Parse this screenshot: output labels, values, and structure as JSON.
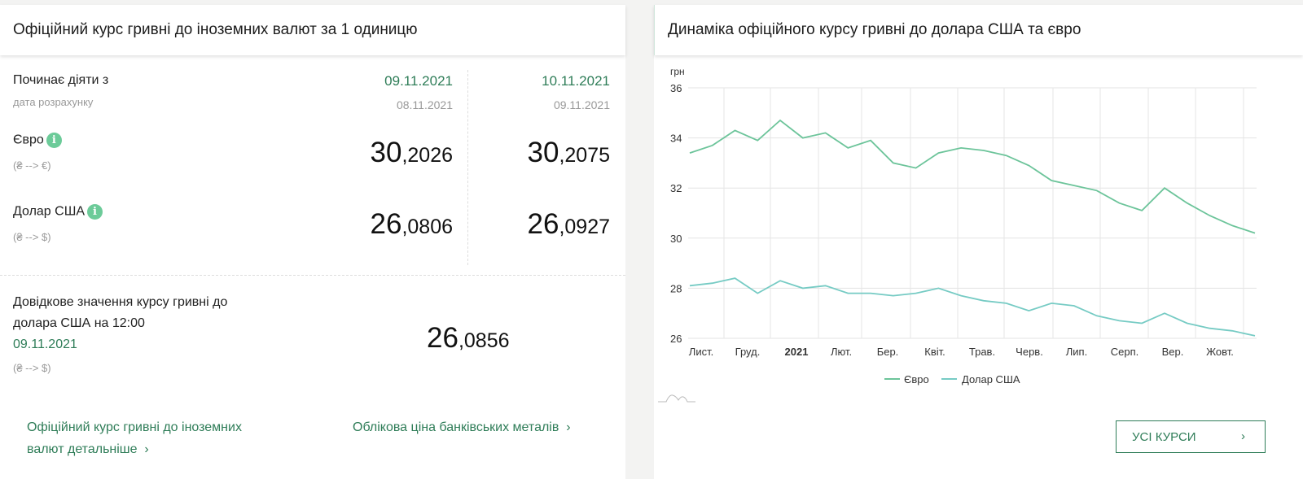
{
  "left": {
    "title": "Офіційний курс гривні до іноземних валют за 1 одиницю",
    "effective_label": "Починає діяти з",
    "calc_date_label": "дата розрахунку",
    "columns": [
      {
        "effective_date": "09.11.2021",
        "calc_date": "08.11.2021"
      },
      {
        "effective_date": "10.11.2021",
        "calc_date": "09.11.2021"
      }
    ],
    "currencies": [
      {
        "name": "Євро",
        "direction": "(₴ --> €)",
        "info_icon": "i",
        "rates": [
          {
            "int": "30",
            "frac": ",2026"
          },
          {
            "int": "30",
            "frac": ",2075"
          }
        ]
      },
      {
        "name": "Долар США",
        "direction": "(₴ --> $)",
        "info_icon": "i",
        "rates": [
          {
            "int": "26",
            "frac": ",0806"
          },
          {
            "int": "26",
            "frac": ",0927"
          }
        ]
      }
    ],
    "reference": {
      "line1": "Довідкове значення курсу гривні до",
      "line2": "долара США на 12:00",
      "date": "09.11.2021",
      "direction": "(₴ --> $)",
      "rate_int": "26",
      "rate_frac": ",0856"
    },
    "links": {
      "details_line1": "Офіційний курс гривні до іноземних",
      "details_line2": "валют детальніше",
      "metals": "Облікова ціна банківських металів",
      "chevron": "›"
    }
  },
  "right": {
    "title": "Динаміка офіційного курсу гривні до долара США та євро",
    "all_rates_button": "УСІ КУРСИ",
    "chevron": "›"
  },
  "colors": {
    "accent": "#2f7d58",
    "euro_line": "#6cc49a",
    "usd_line": "#76cbc4",
    "info_badge": "#6ccb99"
  },
  "chart_data": {
    "type": "line",
    "title": "Динаміка офіційного курсу гривні до долара США та євро",
    "ylabel": "грн",
    "xlabel": "",
    "ylim": [
      26,
      36
    ],
    "yticks": [
      26,
      28,
      30,
      32,
      34,
      36
    ],
    "x_tick_labels": [
      "Лист.",
      "Груд.",
      "2021",
      "Лют.",
      "Бер.",
      "Квіт.",
      "Трав.",
      "Черв.",
      "Лип.",
      "Серп.",
      "Вер.",
      "Жовт."
    ],
    "grid": true,
    "legend": [
      "Євро",
      "Долар США"
    ],
    "legend_position": "bottom",
    "x": [
      "2020-11-01",
      "2020-11-15",
      "2020-12-01",
      "2020-12-15",
      "2021-01-01",
      "2021-01-15",
      "2021-02-01",
      "2021-02-15",
      "2021-03-01",
      "2021-03-15",
      "2021-04-01",
      "2021-04-15",
      "2021-05-01",
      "2021-05-15",
      "2021-06-01",
      "2021-06-15",
      "2021-07-01",
      "2021-07-15",
      "2021-08-01",
      "2021-08-15",
      "2021-09-01",
      "2021-09-15",
      "2021-10-01",
      "2021-10-15",
      "2021-11-01",
      "2021-11-09"
    ],
    "series": [
      {
        "name": "Євро",
        "values": [
          33.4,
          33.7,
          34.3,
          33.9,
          34.7,
          34.0,
          34.2,
          33.6,
          33.9,
          33.0,
          32.8,
          33.4,
          33.6,
          33.5,
          33.3,
          32.9,
          32.3,
          32.1,
          31.9,
          31.4,
          31.1,
          32.0,
          31.4,
          30.9,
          30.5,
          30.2
        ]
      },
      {
        "name": "Долар США",
        "values": [
          28.1,
          28.2,
          28.4,
          27.8,
          28.3,
          28.0,
          28.1,
          27.8,
          27.8,
          27.7,
          27.8,
          28.0,
          27.7,
          27.5,
          27.4,
          27.1,
          27.4,
          27.3,
          26.9,
          26.7,
          26.6,
          27.0,
          26.6,
          26.4,
          26.3,
          26.1
        ]
      }
    ]
  }
}
